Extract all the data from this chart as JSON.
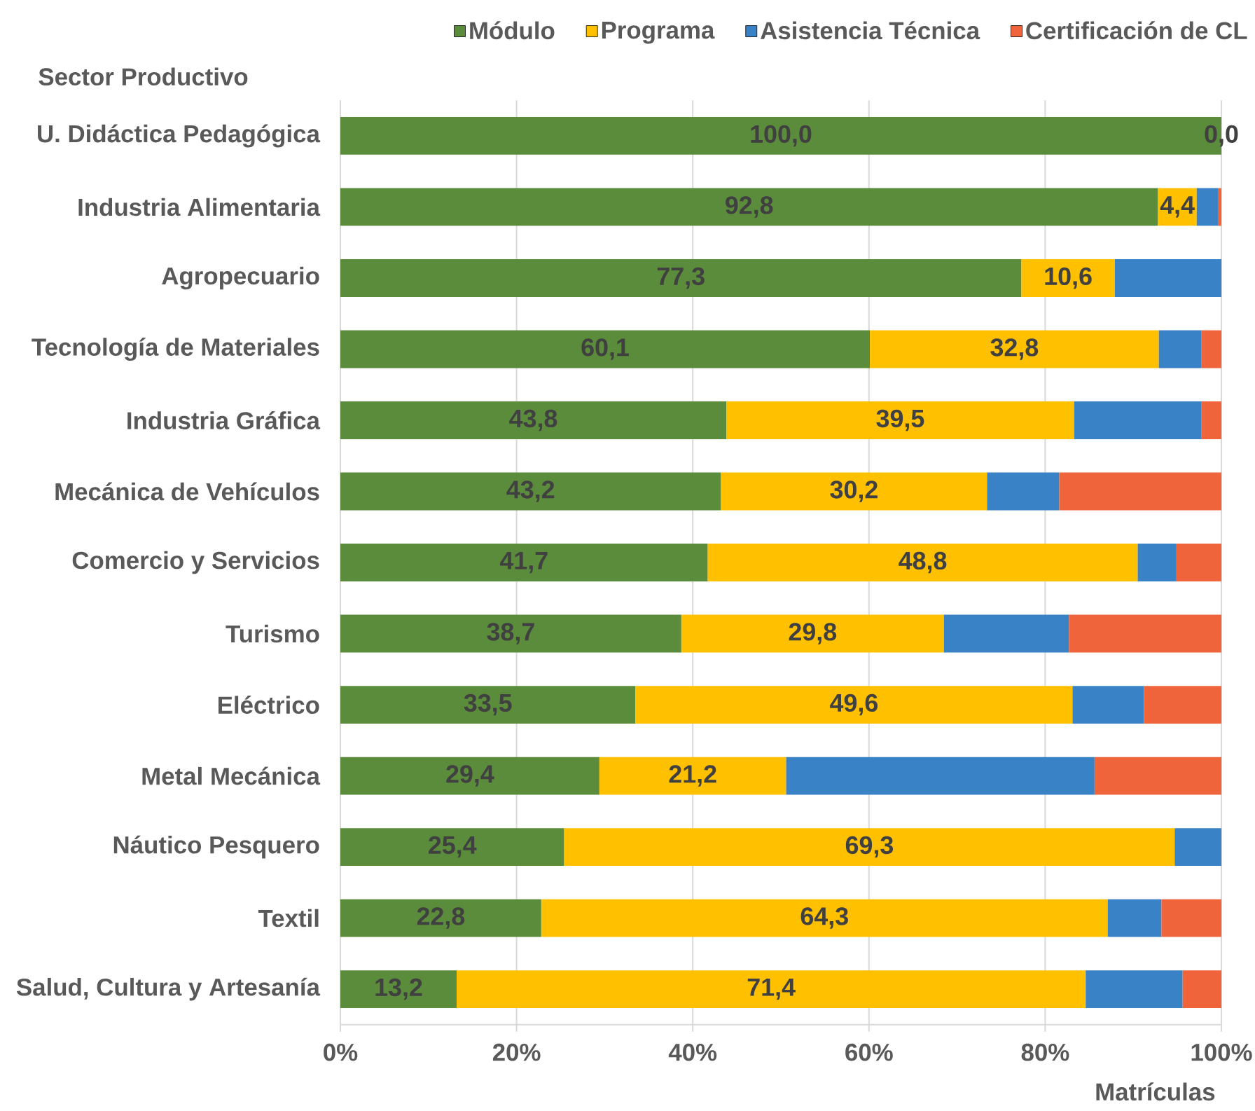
{
  "chart_data": {
    "type": "bar",
    "orientation": "horizontal",
    "stacked": true,
    "ylabel": "Sector Productivo",
    "xlabel": "Matrículas",
    "categories": [
      "U. Didáctica Pedagógica",
      "Industria Alimentaria",
      "Agropecuario",
      "Tecnología de Materiales",
      "Industria Gráfica",
      "Mecánica de Vehículos",
      "Comercio y Servicios",
      "Turismo",
      "Eléctrico",
      "Metal Mecánica",
      "Náutico Pesquero",
      "Textil",
      "Salud, Cultura y Artesanía"
    ],
    "series": [
      {
        "name": "Módulo",
        "color": "#5b8c3c",
        "values": [
          100.0,
          92.8,
          77.3,
          60.1,
          43.8,
          43.2,
          41.7,
          38.7,
          33.5,
          29.4,
          25.4,
          22.8,
          13.2
        ],
        "value_labels": [
          "100,0",
          "92,8",
          "77,3",
          "60,1",
          "43,8",
          "43,2",
          "41,7",
          "38,7",
          "33,5",
          "29,4",
          "25,4",
          "22,8",
          "13,2"
        ]
      },
      {
        "name": "Programa",
        "color": "#ffc000",
        "values": [
          0.0,
          4.4,
          10.6,
          32.8,
          39.5,
          30.2,
          48.8,
          29.8,
          49.6,
          21.2,
          69.3,
          64.3,
          71.4
        ],
        "value_labels": [
          "0,0",
          "4,4",
          "10,6",
          "32,8",
          "39,5",
          "30,2",
          "48,8",
          "29,8",
          "49,6",
          "21,2",
          "69,3",
          "64,3",
          "71,4"
        ]
      },
      {
        "name": "Asistencia Técnica",
        "color": "#3a82c6",
        "values": [
          0,
          2.4,
          12.1,
          4.8,
          14.4,
          8.2,
          4.4,
          14.2,
          8.1,
          35.0,
          5.3,
          6.1,
          11.0
        ]
      },
      {
        "name": "Certificación de CL",
        "color": "#f0643c",
        "values": [
          0,
          0.4,
          0,
          2.3,
          2.3,
          18.4,
          5.1,
          17.3,
          8.8,
          14.4,
          0,
          6.8,
          4.4
        ]
      }
    ],
    "xlim": [
      0,
      100
    ],
    "xticks": [
      {
        "value": 0,
        "label": "0%"
      },
      {
        "value": 20,
        "label": "20%"
      },
      {
        "value": 40,
        "label": "40%"
      },
      {
        "value": 60,
        "label": "60%"
      },
      {
        "value": 80,
        "label": "80%"
      },
      {
        "value": 100,
        "label": "100%"
      }
    ],
    "grid": "x",
    "legend": "top right"
  }
}
